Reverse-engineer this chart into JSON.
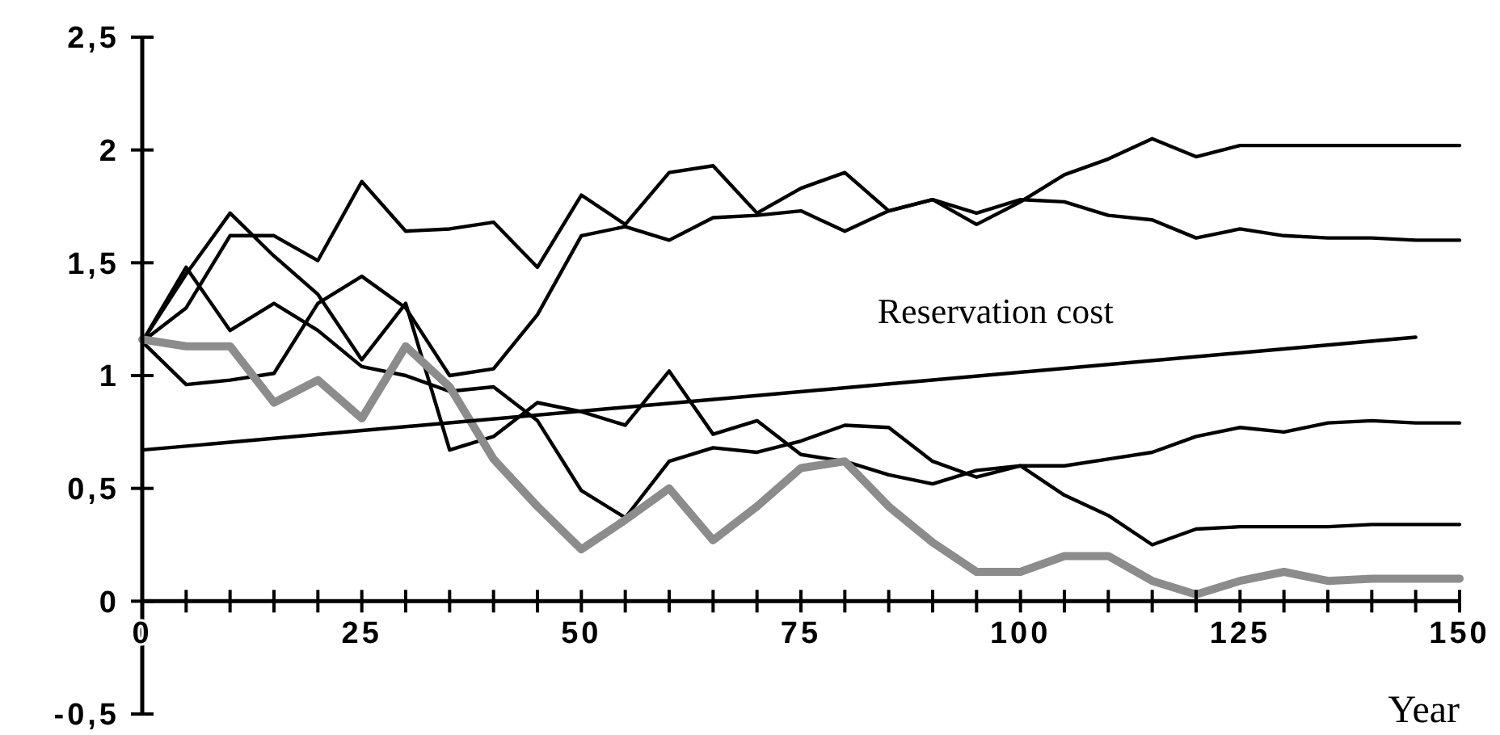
{
  "chart_data": {
    "type": "line",
    "xlabel": "Year",
    "xlim": [
      0,
      150
    ],
    "ylim": [
      -0.5,
      2.5
    ],
    "xticks": [
      0,
      {
        "value": 5,
        "label": null
      },
      {
        "value": 10,
        "label": null
      },
      {
        "value": 15,
        "label": null
      },
      {
        "value": 20,
        "label": null
      },
      25,
      {
        "value": 30,
        "label": null
      },
      {
        "value": 35,
        "label": null
      },
      {
        "value": 40,
        "label": null
      },
      {
        "value": 45,
        "label": null
      },
      50,
      {
        "value": 55,
        "label": null
      },
      {
        "value": 60,
        "label": null
      },
      {
        "value": 65,
        "label": null
      },
      {
        "value": 70,
        "label": null
      },
      75,
      {
        "value": 80,
        "label": null
      },
      {
        "value": 85,
        "label": null
      },
      {
        "value": 90,
        "label": null
      },
      {
        "value": 95,
        "label": null
      },
      100,
      {
        "value": 105,
        "label": null
      },
      {
        "value": 110,
        "label": null
      },
      {
        "value": 115,
        "label": null
      },
      {
        "value": 120,
        "label": null
      },
      125,
      {
        "value": 130,
        "label": null
      },
      {
        "value": 135,
        "label": null
      },
      {
        "value": 140,
        "label": null
      },
      {
        "value": 145,
        "label": null
      },
      150
    ],
    "yticks": [
      {
        "value": -0.5,
        "label": "-0,5"
      },
      0,
      {
        "value": 0.5,
        "label": "0,5"
      },
      1,
      {
        "value": 1.5,
        "label": "1,5"
      },
      2,
      {
        "value": 2.5,
        "label": "2,5"
      }
    ],
    "x": [
      0,
      5,
      10,
      15,
      20,
      25,
      30,
      35,
      40,
      45,
      50,
      55,
      60,
      65,
      70,
      75,
      80,
      85,
      90,
      95,
      100,
      105,
      110,
      115,
      120,
      125,
      130,
      135,
      140,
      145,
      150
    ],
    "grid": false,
    "marker": "none",
    "line_style": "solid",
    "series": [
      {
        "color": "#000000",
        "values": [
          1.15,
          0.96,
          0.98,
          1.01,
          1.32,
          1.44,
          1.3,
          1.0,
          1.03,
          1.27,
          1.62,
          1.66,
          1.6,
          1.7,
          1.71,
          1.73,
          1.64,
          1.73,
          1.78,
          1.67,
          1.77,
          1.89,
          1.96,
          2.05,
          1.97,
          2.02,
          2.02,
          2.02,
          2.02,
          2.02,
          2.02
        ]
      },
      {
        "color": "#000000",
        "values": [
          1.15,
          1.3,
          1.62,
          1.62,
          1.51,
          1.86,
          1.64,
          1.65,
          1.68,
          1.48,
          1.8,
          1.67,
          1.9,
          1.93,
          1.72,
          1.83,
          1.9,
          1.73,
          1.78,
          1.72,
          1.78,
          1.77,
          1.71,
          1.69,
          1.61,
          1.65,
          1.62,
          1.61,
          1.61,
          1.6,
          1.6
        ]
      },
      {
        "color": "#000000",
        "values": [
          1.15,
          1.45,
          1.72,
          1.53,
          1.36,
          1.07,
          1.32,
          0.67,
          0.73,
          0.88,
          0.84,
          0.78,
          1.02,
          0.74,
          0.8,
          0.65,
          0.62,
          0.56,
          0.52,
          0.58,
          0.6,
          0.6,
          0.63,
          0.66,
          0.73,
          0.77,
          0.75,
          0.79,
          0.8,
          0.79,
          0.79
        ]
      },
      {
        "color": "#000000",
        "values": [
          1.15,
          1.48,
          1.2,
          1.32,
          1.2,
          1.04,
          1.0,
          0.93,
          0.95,
          0.8,
          0.49,
          0.37,
          0.62,
          0.68,
          0.66,
          0.71,
          0.78,
          0.77,
          0.62,
          0.55,
          0.6,
          0.47,
          0.38,
          0.25,
          0.32,
          0.33,
          0.33,
          0.33,
          0.34,
          0.34,
          0.34
        ]
      },
      {
        "color": "#8c8c8c",
        "values": [
          1.16,
          1.13,
          1.13,
          0.88,
          0.98,
          0.81,
          1.13,
          0.95,
          0.63,
          0.42,
          0.23,
          0.36,
          0.5,
          0.27,
          0.42,
          0.59,
          0.62,
          0.42,
          0.26,
          0.13,
          0.13,
          0.2,
          0.2,
          0.09,
          0.03,
          0.09,
          0.13,
          0.09,
          0.1,
          0.1,
          0.1
        ]
      },
      {
        "name": "Reservation cost",
        "color": "#000000",
        "x": [
          0,
          145
        ],
        "values": [
          0.67,
          1.17
        ]
      }
    ]
  }
}
